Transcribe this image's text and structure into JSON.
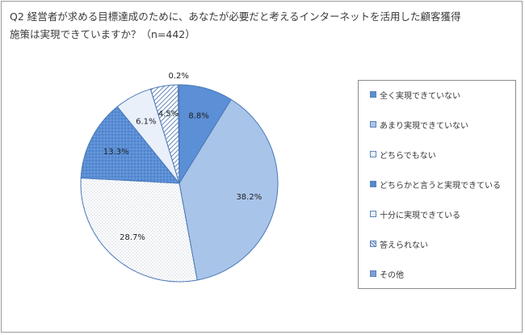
{
  "chart_data": {
    "type": "pie",
    "title": "Q2 経営者が求める目標達成のために、あなたが必要だと考えるインターネットを活用した顧客獲得施策は実現できていますか？（n=442）",
    "unit": "%",
    "legend_position": "right",
    "slices": [
      {
        "label": "全く実現できていない",
        "value": 8.8,
        "display": "8.8%",
        "color": "#5b8fd6",
        "pattern": "solid"
      },
      {
        "label": "あまり実現できていない",
        "value": 38.2,
        "display": "38.2%",
        "color": "#a9c4e9",
        "pattern": "solid"
      },
      {
        "label": "どちらでもない",
        "value": 28.7,
        "display": "28.7%",
        "color": "#f4f4f4",
        "pattern": "dots"
      },
      {
        "label": "どちらかと言うと実現できている",
        "value": 13.3,
        "display": "13.3%",
        "color": "#5b8fd6",
        "pattern": "grid"
      },
      {
        "label": "十分に実現できている",
        "value": 6.1,
        "display": "6.1%",
        "color": "#e9f0fa",
        "pattern": "solid"
      },
      {
        "label": "答えられない",
        "value": 4.5,
        "display": "4.5%",
        "color": "#ffffff",
        "pattern": "diagonal"
      },
      {
        "label": "その他",
        "value": 0.2,
        "display": "0.2%",
        "color": "#7b9fd0",
        "pattern": "solid"
      }
    ]
  }
}
